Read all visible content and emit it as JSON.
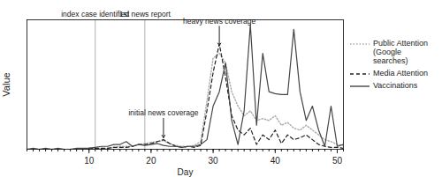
{
  "chart_data": {
    "type": "line",
    "x_label": "Day",
    "y_label": "Value",
    "x": [
      0,
      1,
      2,
      3,
      4,
      5,
      6,
      7,
      8,
      9,
      10,
      11,
      12,
      13,
      14,
      15,
      16,
      17,
      18,
      19,
      20,
      21,
      22,
      23,
      24,
      25,
      26,
      27,
      28,
      29,
      30,
      31,
      32,
      33,
      34,
      35,
      36,
      37,
      38,
      39,
      40,
      41,
      42,
      43,
      44,
      45,
      46,
      47,
      48,
      49,
      50,
      51
    ],
    "series": [
      {
        "name": "Public Attention (Google searches)",
        "color": "#aaaaaa",
        "line_style": "dotted",
        "values": [
          0,
          0,
          0,
          0,
          0,
          0,
          0,
          0,
          0,
          0,
          1,
          1,
          1,
          1,
          2,
          3,
          3,
          3,
          5,
          6,
          7,
          8,
          9,
          6,
          4,
          3,
          3,
          4,
          8,
          50,
          95,
          100,
          90,
          60,
          45,
          35,
          40,
          30,
          32,
          30,
          35,
          25,
          28,
          22,
          20,
          25,
          20,
          15,
          10,
          8,
          5,
          4
        ]
      },
      {
        "name": "Media Attention",
        "color": "#222222",
        "line_style": "dashed",
        "values": [
          0,
          0,
          0,
          0,
          0,
          0,
          0,
          0,
          0,
          0,
          1,
          1,
          1,
          1,
          2,
          2,
          2,
          3,
          5,
          5,
          6,
          8,
          10,
          6,
          3,
          2,
          3,
          2,
          4,
          40,
          80,
          110,
          75,
          35,
          20,
          15,
          22,
          5,
          15,
          10,
          20,
          6,
          15,
          10,
          12,
          15,
          10,
          5,
          3,
          2,
          2,
          1
        ]
      },
      {
        "name": "Vaccinations",
        "color": "#444444",
        "line_style": "solid",
        "values": [
          0,
          1,
          0,
          1,
          0,
          1,
          0,
          0,
          1,
          1,
          1,
          2,
          3,
          3,
          5,
          5,
          8,
          3,
          5,
          4,
          5,
          6,
          4,
          3,
          3,
          2,
          3,
          3,
          5,
          10,
          45,
          60,
          90,
          30,
          5,
          40,
          130,
          25,
          100,
          60,
          58,
          57,
          57,
          125,
          60,
          30,
          45,
          20,
          3,
          45,
          3,
          5
        ]
      }
    ],
    "xlim": [
      0,
      51
    ],
    "xticks": [
      10,
      20,
      30,
      40,
      50
    ],
    "ylim": [
      0,
      135
    ],
    "tick_labels": "x",
    "legend": "right",
    "annotations": [
      {
        "text": "index case identified",
        "x": 11,
        "type": "vline"
      },
      {
        "text": "1st news report",
        "x": 19,
        "type": "vline"
      },
      {
        "text": "initial news coverage",
        "x": 22,
        "y": 12,
        "type": "arrow"
      },
      {
        "text": "heavy news coverage",
        "x": 31,
        "y": 108,
        "type": "arrow"
      }
    ]
  }
}
